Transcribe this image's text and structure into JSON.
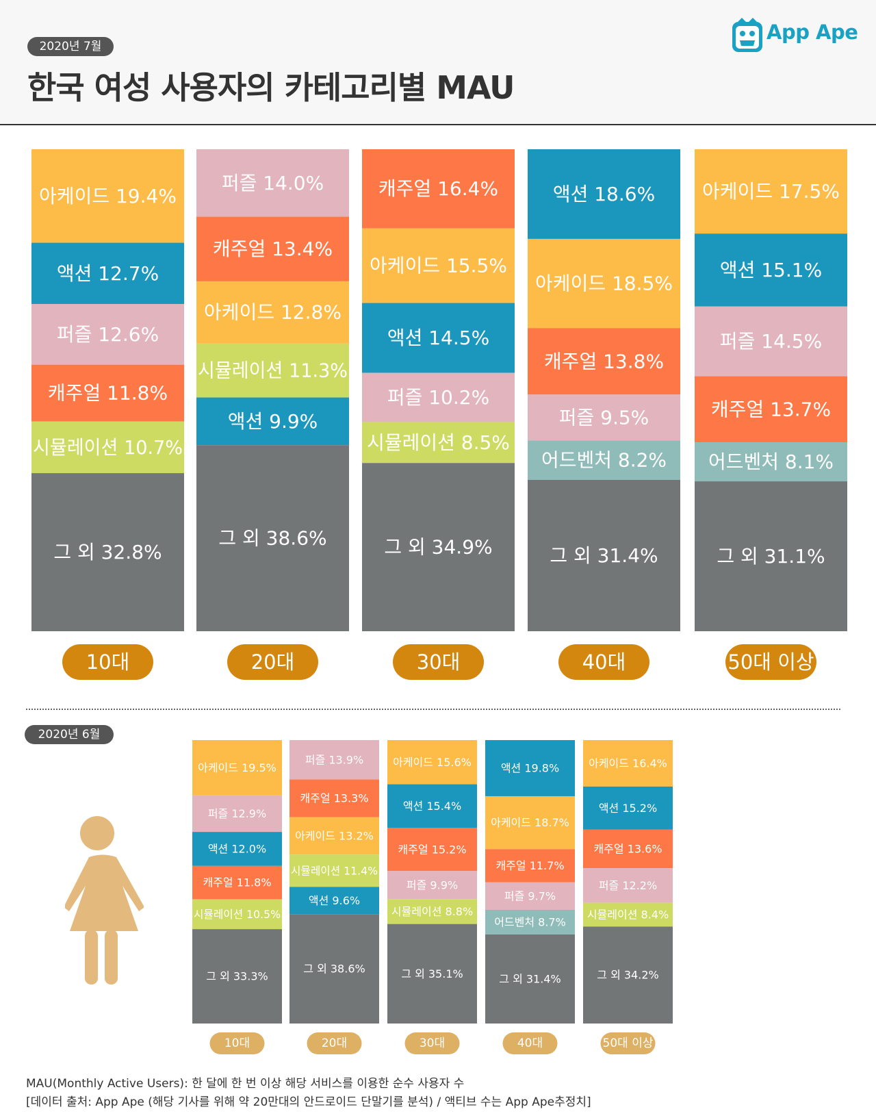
{
  "header": {
    "date_july": "2020년 7월",
    "title": "한국 여성 사용자의 카테고리별 MAU",
    "logo_text": "App Ape"
  },
  "section2": {
    "date_june": "2020년 6월"
  },
  "footer": {
    "line1": "MAU(Monthly Active Users):  한 달에 한 번 이상 해당 서비스를 이용한 순수 사용자 수",
    "line2": "[데이터 출처: App Ape (해당 기사를 위해 약 20만대의 안드로이드 단말기를 분석) / 액티브 수는 App Ape추정치]"
  },
  "colors": {
    "아케이드": "#fdbb48",
    "액션": "#1b96bd",
    "퍼즐": "#e2b4bd",
    "캐주얼": "#fd7846",
    "시뮬레이션": "#cedb62",
    "어드벤처": "#8fbcb9",
    "그 외": "#737677",
    "pill": "#d4870f",
    "pill_light": "#ddb064",
    "logo": "#1aa2c4"
  },
  "chart_data": [
    {
      "type": "bar",
      "stacked": true,
      "title": "2020년 7월",
      "unit": "%",
      "categories": [
        "10대",
        "20대",
        "30대",
        "40대",
        "50대 이상"
      ],
      "stacks": [
        [
          {
            "name": "아케이드",
            "value": 19.4
          },
          {
            "name": "액션",
            "value": 12.7
          },
          {
            "name": "퍼즐",
            "value": 12.6
          },
          {
            "name": "캐주얼",
            "value": 11.8
          },
          {
            "name": "시뮬레이션",
            "value": 10.7
          },
          {
            "name": "그 외",
            "value": 32.8
          }
        ],
        [
          {
            "name": "퍼즐",
            "value": 14.0
          },
          {
            "name": "캐주얼",
            "value": 13.4
          },
          {
            "name": "아케이드",
            "value": 12.8
          },
          {
            "name": "시뮬레이션",
            "value": 11.3
          },
          {
            "name": "액션",
            "value": 9.9
          },
          {
            "name": "그 외",
            "value": 38.6
          }
        ],
        [
          {
            "name": "캐주얼",
            "value": 16.4
          },
          {
            "name": "아케이드",
            "value": 15.5
          },
          {
            "name": "액션",
            "value": 14.5
          },
          {
            "name": "퍼즐",
            "value": 10.2
          },
          {
            "name": "시뮬레이션",
            "value": 8.5
          },
          {
            "name": "그 외",
            "value": 34.9
          }
        ],
        [
          {
            "name": "액션",
            "value": 18.6
          },
          {
            "name": "아케이드",
            "value": 18.5
          },
          {
            "name": "캐주얼",
            "value": 13.8
          },
          {
            "name": "퍼즐",
            "value": 9.5
          },
          {
            "name": "어드벤처",
            "value": 8.2
          },
          {
            "name": "그 외",
            "value": 31.4
          }
        ],
        [
          {
            "name": "아케이드",
            "value": 17.5
          },
          {
            "name": "액션",
            "value": 15.1
          },
          {
            "name": "퍼즐",
            "value": 14.5
          },
          {
            "name": "캐주얼",
            "value": 13.7
          },
          {
            "name": "어드벤처",
            "value": 8.1
          },
          {
            "name": "그 외",
            "value": 31.1
          }
        ]
      ]
    },
    {
      "type": "bar",
      "stacked": true,
      "title": "2020년 6월",
      "unit": "%",
      "categories": [
        "10대",
        "20대",
        "30대",
        "40대",
        "50대 이상"
      ],
      "stacks": [
        [
          {
            "name": "아케이드",
            "value": 19.5
          },
          {
            "name": "퍼즐",
            "value": 12.9
          },
          {
            "name": "액션",
            "value": 12.0
          },
          {
            "name": "캐주얼",
            "value": 11.8
          },
          {
            "name": "시뮬레이션",
            "value": 10.5
          },
          {
            "name": "그 외",
            "value": 33.3
          }
        ],
        [
          {
            "name": "퍼즐",
            "value": 13.9
          },
          {
            "name": "캐주얼",
            "value": 13.3
          },
          {
            "name": "아케이드",
            "value": 13.2
          },
          {
            "name": "시뮬레이션",
            "value": 11.4
          },
          {
            "name": "액션",
            "value": 9.6
          },
          {
            "name": "그 외",
            "value": 38.6
          }
        ],
        [
          {
            "name": "아케이드",
            "value": 15.6
          },
          {
            "name": "액션",
            "value": 15.4
          },
          {
            "name": "캐주얼",
            "value": 15.2
          },
          {
            "name": "퍼즐",
            "value": 9.9
          },
          {
            "name": "시뮬레이션",
            "value": 8.8
          },
          {
            "name": "그 외",
            "value": 35.1
          }
        ],
        [
          {
            "name": "액션",
            "value": 19.8
          },
          {
            "name": "아케이드",
            "value": 18.7
          },
          {
            "name": "캐주얼",
            "value": 11.7
          },
          {
            "name": "퍼즐",
            "value": 9.7
          },
          {
            "name": "어드벤처",
            "value": 8.7
          },
          {
            "name": "그 외",
            "value": 31.4
          }
        ],
        [
          {
            "name": "아케이드",
            "value": 16.4
          },
          {
            "name": "액션",
            "value": 15.2
          },
          {
            "name": "캐주얼",
            "value": 13.6
          },
          {
            "name": "퍼즐",
            "value": 12.2
          },
          {
            "name": "시뮬레이션",
            "value": 8.4
          },
          {
            "name": "그 외",
            "value": 34.2
          }
        ]
      ]
    }
  ]
}
